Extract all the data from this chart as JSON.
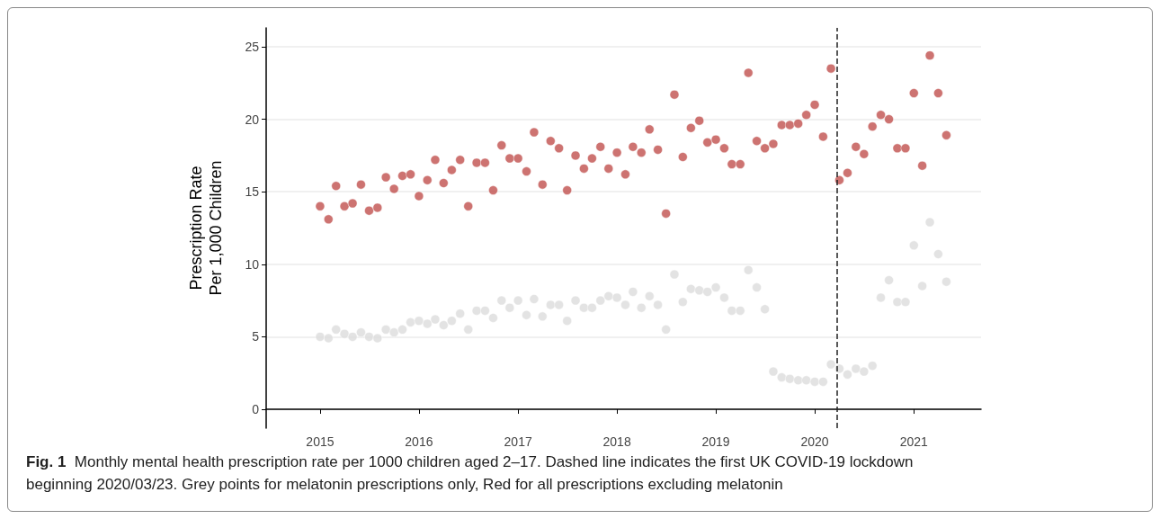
{
  "chart_data": {
    "type": "scatter",
    "ylabel": "Prescription Rate\nPer 1,000 Children",
    "x": [
      "2015-01",
      "2015-02",
      "2015-03",
      "2015-04",
      "2015-05",
      "2015-06",
      "2015-07",
      "2015-08",
      "2015-09",
      "2015-10",
      "2015-11",
      "2015-12",
      "2016-01",
      "2016-02",
      "2016-03",
      "2016-04",
      "2016-05",
      "2016-06",
      "2016-07",
      "2016-08",
      "2016-09",
      "2016-10",
      "2016-11",
      "2016-12",
      "2017-01",
      "2017-02",
      "2017-03",
      "2017-04",
      "2017-05",
      "2017-06",
      "2017-07",
      "2017-08",
      "2017-09",
      "2017-10",
      "2017-11",
      "2017-12",
      "2018-01",
      "2018-02",
      "2018-03",
      "2018-04",
      "2018-05",
      "2018-06",
      "2018-07",
      "2018-08",
      "2018-09",
      "2018-10",
      "2018-11",
      "2018-12",
      "2019-01",
      "2019-02",
      "2019-03",
      "2019-04",
      "2019-05",
      "2019-06",
      "2019-07",
      "2019-08",
      "2019-09",
      "2019-10",
      "2019-11",
      "2019-12",
      "2020-01",
      "2020-02",
      "2020-03",
      "2020-04",
      "2020-05",
      "2020-06",
      "2020-07",
      "2020-08",
      "2020-09",
      "2020-10",
      "2020-11",
      "2020-12",
      "2021-01",
      "2021-02",
      "2021-03",
      "2021-04",
      "2021-05"
    ],
    "series": [
      {
        "color": "#dcdcdc",
        "values": [
          5.0,
          4.9,
          5.5,
          5.2,
          5.0,
          5.3,
          5.0,
          4.9,
          5.5,
          5.3,
          5.5,
          6.0,
          6.1,
          5.9,
          6.2,
          5.8,
          6.1,
          6.6,
          5.5,
          6.8,
          6.8,
          6.3,
          7.5,
          7.0,
          7.5,
          6.5,
          7.6,
          6.4,
          7.2,
          7.2,
          6.1,
          7.5,
          7.0,
          7.0,
          7.5,
          7.8,
          7.7,
          7.2,
          8.1,
          7.0,
          7.8,
          7.2,
          5.5,
          9.3,
          7.4,
          8.3,
          8.2,
          8.1,
          8.4,
          7.7,
          6.8,
          6.8,
          9.6,
          8.4,
          6.9,
          2.6,
          2.2,
          2.1,
          2.0,
          2.0,
          1.9,
          1.9,
          3.1,
          2.8,
          2.4,
          2.8,
          2.6,
          3.0,
          7.7,
          8.9,
          7.4,
          7.4,
          11.3,
          8.5,
          12.9,
          10.7,
          8.8
        ]
      },
      {
        "color": "#c0504d",
        "values": [
          14.0,
          13.1,
          15.4,
          14.0,
          14.2,
          15.5,
          13.7,
          13.9,
          16.0,
          15.2,
          16.1,
          16.2,
          14.7,
          15.8,
          17.2,
          15.6,
          16.5,
          17.2,
          14.0,
          17.0,
          17.0,
          15.1,
          18.2,
          17.3,
          17.3,
          16.4,
          19.1,
          15.5,
          18.5,
          18.0,
          15.1,
          17.5,
          16.6,
          17.3,
          18.1,
          16.6,
          17.7,
          16.2,
          18.1,
          17.7,
          19.3,
          17.9,
          13.5,
          21.7,
          17.4,
          19.4,
          19.9,
          18.4,
          18.6,
          18.0,
          16.9,
          16.9,
          23.2,
          18.5,
          18.0,
          18.3,
          19.6,
          19.6,
          19.7,
          20.3,
          21.0,
          18.8,
          23.5,
          15.8,
          16.3,
          18.1,
          17.6,
          19.5,
          20.3,
          20.0,
          18.0,
          18.0,
          21.8,
          16.8,
          24.4,
          21.8,
          18.9
        ]
      }
    ],
    "xlim": [
      "2014-06-16",
      "2021-09-06"
    ],
    "xticks": [
      "2015",
      "2016",
      "2017",
      "2018",
      "2019",
      "2020",
      "2021"
    ],
    "ylim": [
      -1.3,
      26.3
    ],
    "yticks": [
      0,
      5,
      10,
      15,
      20,
      25
    ],
    "grid": "y",
    "marker": "circle",
    "ref_lines": [
      {
        "axis": "x",
        "value": "2020-03-23",
        "color": "#222222",
        "line_style": "dashed"
      }
    ],
    "annotations": [
      "Fig. 1",
      "Monthly mental health prescription rate per 1000 children aged 2–17. Dashed line indicates the first UK COVID-19 lockdown beginning 2020/03/23. Grey points for melatonin prescriptions only, Red for all prescriptions excluding melatonin"
    ]
  }
}
